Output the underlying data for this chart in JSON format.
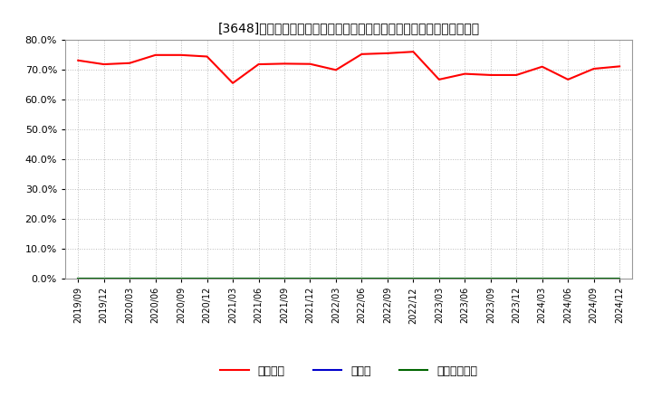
{
  "title": "[3648]　自己資本、のれん、繰延税金資産の総資産に対する比率の推移",
  "x_labels": [
    "2019/09",
    "2019/12",
    "2020/03",
    "2020/06",
    "2020/09",
    "2020/12",
    "2021/03",
    "2021/06",
    "2021/09",
    "2021/12",
    "2022/03",
    "2022/06",
    "2022/09",
    "2022/12",
    "2023/03",
    "2023/06",
    "2023/09",
    "2023/12",
    "2024/03",
    "2024/06",
    "2024/09",
    "2024/12"
  ],
  "equity_ratio": [
    0.731,
    0.718,
    0.722,
    0.749,
    0.749,
    0.744,
    0.655,
    0.718,
    0.72,
    0.719,
    0.699,
    0.752,
    0.755,
    0.76,
    0.667,
    0.686,
    0.682,
    0.682,
    0.71,
    0.667,
    0.703,
    0.711
  ],
  "goodwill_ratio": [
    0.0,
    0.0,
    0.0,
    0.0,
    0.0,
    0.0,
    0.0,
    0.0,
    0.0,
    0.0,
    0.0,
    0.0,
    0.0,
    0.0,
    0.0,
    0.0,
    0.0,
    0.0,
    0.0,
    0.0,
    0.0,
    0.0
  ],
  "deferred_tax_ratio": [
    0.0,
    0.0,
    0.0,
    0.0,
    0.0,
    0.0,
    0.0,
    0.0,
    0.0,
    0.0,
    0.0,
    0.0,
    0.0,
    0.0,
    0.0,
    0.0,
    0.0,
    0.0,
    0.0,
    0.0,
    0.0,
    0.0
  ],
  "equity_color": "#ff0000",
  "goodwill_color": "#0000cc",
  "deferred_tax_color": "#006600",
  "legend_labels": [
    "自己資本",
    "のれん",
    "繰延税金資産"
  ],
  "ylim": [
    0.0,
    0.8
  ],
  "yticks": [
    0.0,
    0.1,
    0.2,
    0.3,
    0.4,
    0.5,
    0.6,
    0.7,
    0.8
  ],
  "background_color": "#ffffff",
  "plot_bg_color": "#ffffff",
  "grid_color": "#bbbbbb",
  "title_fontsize": 10.5
}
